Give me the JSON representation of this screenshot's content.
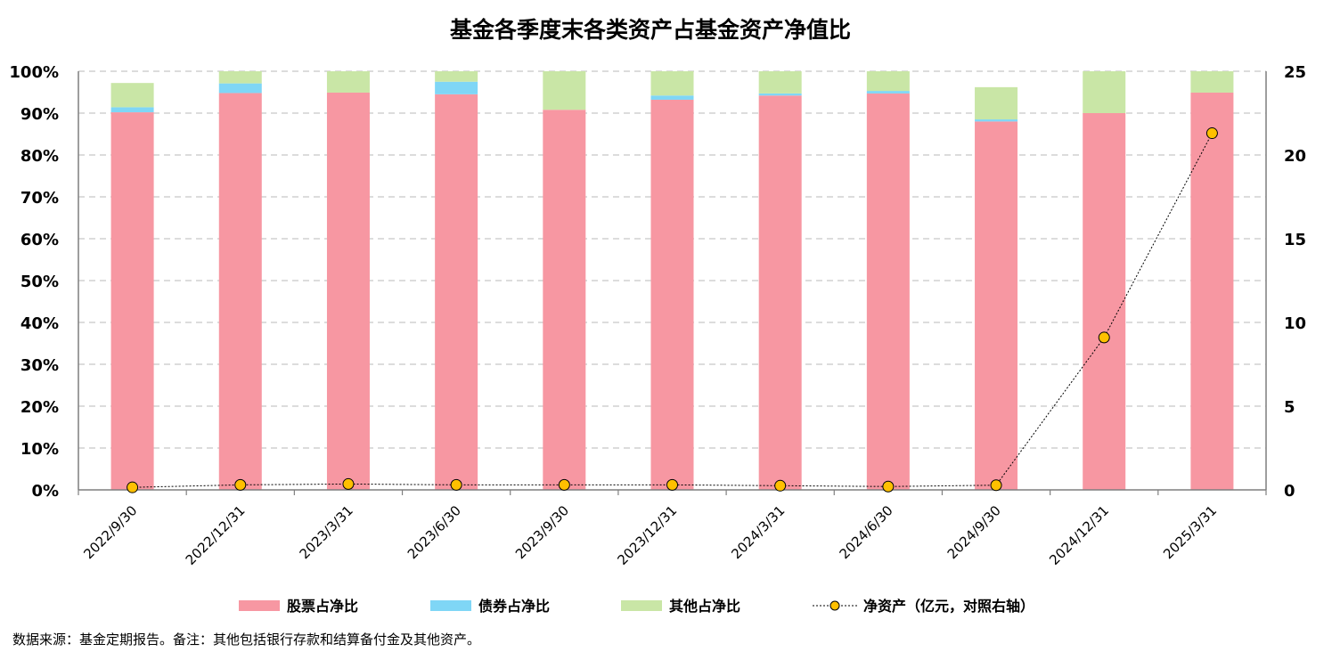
{
  "chart_data": {
    "type": "bar",
    "stacked": true,
    "title": "基金各季度末各类资产占基金资产净值比",
    "categories": [
      "2022/9/30",
      "2022/12/31",
      "2023/3/31",
      "2023/6/30",
      "2023/9/30",
      "2023/12/31",
      "2024/3/31",
      "2024/6/30",
      "2024/9/30",
      "2024/12/31",
      "2025/3/31"
    ],
    "series": [
      {
        "name": "股票占净比",
        "color": "#f797a2",
        "axis": "left",
        "values": [
          90.2,
          94.8,
          94.9,
          94.5,
          90.8,
          93.2,
          94.2,
          94.7,
          88.0,
          90.0,
          94.9
        ]
      },
      {
        "name": "债券占净比",
        "color": "#7fd6f6",
        "axis": "left",
        "values": [
          1.2,
          2.3,
          0.0,
          3.0,
          0.0,
          1.0,
          0.5,
          0.6,
          0.5,
          0.0,
          0.0
        ]
      },
      {
        "name": "其他占净比",
        "color": "#c9e6a6",
        "axis": "left",
        "values": [
          5.8,
          2.9,
          5.1,
          2.5,
          9.2,
          5.8,
          5.3,
          4.7,
          7.7,
          10.0,
          5.1
        ]
      },
      {
        "name": "净资产（亿元，对照右轴）",
        "type": "line",
        "color": "#ffc000",
        "axis": "right",
        "values": [
          0.15,
          0.3,
          0.35,
          0.3,
          0.3,
          0.3,
          0.25,
          0.2,
          0.28,
          9.1,
          21.3
        ]
      }
    ],
    "y_left": {
      "min": 0,
      "max": 100,
      "ticks": [
        "0%",
        "10%",
        "20%",
        "30%",
        "40%",
        "50%",
        "60%",
        "70%",
        "80%",
        "90%",
        "100%"
      ]
    },
    "y_right": {
      "min": 0,
      "max": 25,
      "ticks": [
        "0",
        "5",
        "10",
        "15",
        "20",
        "25"
      ]
    },
    "grid": true,
    "legend_position": "bottom"
  },
  "source_note": "数据来源：基金定期报告。备注：其他包括银行存款和结算备付金及其他资产。"
}
